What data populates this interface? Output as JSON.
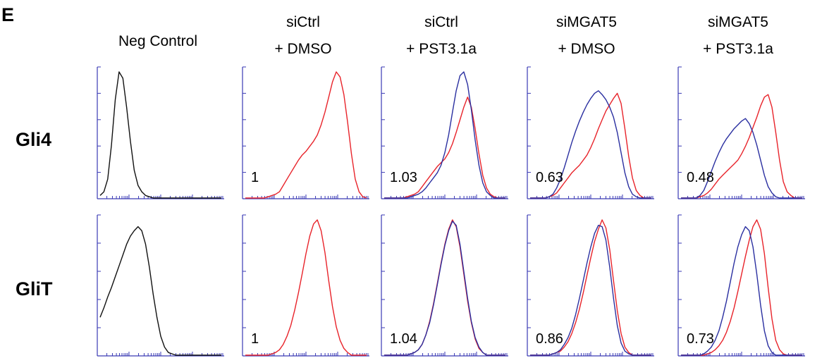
{
  "figure": {
    "panel_letter": "E",
    "columns": [
      {
        "line1": "Neg Control",
        "line2": ""
      },
      {
        "line1": "siCtrl",
        "line2": "+ DMSO"
      },
      {
        "line1": "siCtrl",
        "line2": "+ PST3.1a"
      },
      {
        "line1": "siMGAT5",
        "line2": "+ DMSO"
      },
      {
        "line1": "siMGAT5",
        "line2": "+ PST3.1a"
      }
    ],
    "rows": [
      "Gli4",
      "GliT"
    ]
  },
  "colors": {
    "neg": "#111111",
    "red": "#e8232a",
    "blue": "#2a2fa0",
    "axis": "#3a3ab4"
  },
  "chart_data": [
    {
      "type": "line",
      "row": "Gli4",
      "column": "Neg Control",
      "ratio_label": "",
      "series": [
        {
          "color": "black",
          "y": [
            0.02,
            0.05,
            0.15,
            0.42,
            0.78,
            1.0,
            0.95,
            0.72,
            0.45,
            0.22,
            0.1,
            0.05,
            0.02,
            0.01,
            0.0,
            0.0,
            0.0,
            0.0,
            0.0,
            0.0,
            0.0,
            0.0,
            0.0,
            0.0,
            0.0,
            0.0,
            0.0,
            0.0,
            0.0,
            0.0,
            0.0,
            0.0,
            0.0
          ]
        }
      ]
    },
    {
      "type": "line",
      "row": "Gli4",
      "column": "siCtrl + DMSO",
      "ratio_label": "1",
      "series": [
        {
          "color": "red",
          "y": [
            0.0,
            0.0,
            0.0,
            0.0,
            0.0,
            0.0,
            0.01,
            0.02,
            0.03,
            0.05,
            0.1,
            0.15,
            0.2,
            0.25,
            0.3,
            0.34,
            0.37,
            0.41,
            0.45,
            0.5,
            0.58,
            0.68,
            0.8,
            0.92,
            1.0,
            0.96,
            0.82,
            0.6,
            0.35,
            0.15,
            0.05,
            0.01,
            0.0
          ]
        }
      ]
    },
    {
      "type": "line",
      "row": "Gli4",
      "column": "siCtrl + PST3.1a",
      "ratio_label": "1.03",
      "series": [
        {
          "color": "red",
          "y": [
            0.0,
            0.0,
            0.0,
            0.0,
            0.0,
            0.0,
            0.01,
            0.02,
            0.03,
            0.05,
            0.09,
            0.13,
            0.17,
            0.21,
            0.25,
            0.28,
            0.31,
            0.36,
            0.43,
            0.52,
            0.62,
            0.72,
            0.8,
            0.72,
            0.55,
            0.35,
            0.18,
            0.08,
            0.03,
            0.01,
            0.0,
            0.0,
            0.0
          ]
        },
        {
          "color": "blue",
          "y": [
            0.0,
            0.0,
            0.0,
            0.0,
            0.0,
            0.0,
            0.0,
            0.01,
            0.02,
            0.03,
            0.05,
            0.08,
            0.12,
            0.16,
            0.2,
            0.26,
            0.36,
            0.5,
            0.68,
            0.85,
            0.97,
            1.0,
            0.9,
            0.7,
            0.46,
            0.26,
            0.12,
            0.05,
            0.02,
            0.0,
            0.0,
            0.0,
            0.0
          ]
        }
      ]
    },
    {
      "type": "line",
      "row": "Gli4",
      "column": "siMGAT5 + DMSO",
      "ratio_label": "0.63",
      "series": [
        {
          "color": "red",
          "y": [
            0.0,
            0.0,
            0.0,
            0.0,
            0.0,
            0.01,
            0.02,
            0.04,
            0.08,
            0.12,
            0.16,
            0.2,
            0.23,
            0.26,
            0.3,
            0.34,
            0.4,
            0.47,
            0.55,
            0.62,
            0.69,
            0.74,
            0.79,
            0.83,
            0.75,
            0.55,
            0.33,
            0.16,
            0.06,
            0.02,
            0.0,
            0.0,
            0.0
          ]
        },
        {
          "color": "blue",
          "y": [
            0.0,
            0.0,
            0.0,
            0.0,
            0.0,
            0.01,
            0.03,
            0.08,
            0.15,
            0.24,
            0.34,
            0.44,
            0.53,
            0.61,
            0.68,
            0.74,
            0.79,
            0.83,
            0.85,
            0.82,
            0.78,
            0.72,
            0.64,
            0.52,
            0.36,
            0.2,
            0.09,
            0.03,
            0.01,
            0.0,
            0.0,
            0.0,
            0.0
          ]
        }
      ]
    },
    {
      "type": "line",
      "row": "Gli4",
      "column": "siMGAT5 + PST3.1a",
      "ratio_label": "0.48",
      "series": [
        {
          "color": "red",
          "y": [
            0.0,
            0.0,
            0.0,
            0.0,
            0.0,
            0.01,
            0.02,
            0.04,
            0.07,
            0.11,
            0.15,
            0.18,
            0.21,
            0.24,
            0.27,
            0.3,
            0.35,
            0.41,
            0.48,
            0.56,
            0.64,
            0.73,
            0.8,
            0.82,
            0.72,
            0.52,
            0.3,
            0.13,
            0.05,
            0.02,
            0.0,
            0.0,
            0.0
          ]
        },
        {
          "color": "blue",
          "y": [
            0.0,
            0.0,
            0.0,
            0.0,
            0.0,
            0.02,
            0.06,
            0.13,
            0.21,
            0.29,
            0.36,
            0.42,
            0.47,
            0.51,
            0.55,
            0.58,
            0.61,
            0.63,
            0.59,
            0.52,
            0.42,
            0.3,
            0.18,
            0.09,
            0.04,
            0.01,
            0.0,
            0.0,
            0.0,
            0.0,
            0.0,
            0.0,
            0.0
          ]
        }
      ]
    },
    {
      "type": "line",
      "row": "GliT",
      "column": "Neg Control",
      "ratio_label": "",
      "series": [
        {
          "color": "black",
          "y": [
            0.28,
            0.35,
            0.43,
            0.5,
            0.58,
            0.66,
            0.74,
            0.82,
            0.88,
            0.92,
            0.95,
            0.92,
            0.82,
            0.65,
            0.45,
            0.28,
            0.14,
            0.06,
            0.02,
            0.01,
            0.0,
            0.0,
            0.0,
            0.0,
            0.0,
            0.0,
            0.0,
            0.0,
            0.0,
            0.0,
            0.0,
            0.0,
            0.0
          ]
        }
      ]
    },
    {
      "type": "line",
      "row": "GliT",
      "column": "siCtrl + DMSO",
      "ratio_label": "1",
      "series": [
        {
          "color": "red",
          "y": [
            0.0,
            0.0,
            0.0,
            0.0,
            0.0,
            0.0,
            0.0,
            0.01,
            0.02,
            0.04,
            0.08,
            0.14,
            0.22,
            0.33,
            0.46,
            0.6,
            0.75,
            0.88,
            0.97,
            1.0,
            0.92,
            0.76,
            0.55,
            0.36,
            0.21,
            0.11,
            0.05,
            0.02,
            0.0,
            0.0,
            0.0,
            0.0,
            0.0
          ]
        }
      ]
    },
    {
      "type": "line",
      "row": "GliT",
      "column": "siCtrl + PST3.1a",
      "ratio_label": "1.04",
      "series": [
        {
          "color": "red",
          "y": [
            0.0,
            0.0,
            0.0,
            0.0,
            0.0,
            0.0,
            0.0,
            0.01,
            0.02,
            0.04,
            0.08,
            0.15,
            0.25,
            0.38,
            0.53,
            0.68,
            0.82,
            0.93,
            1.0,
            0.95,
            0.8,
            0.6,
            0.4,
            0.24,
            0.12,
            0.05,
            0.02,
            0.0,
            0.0,
            0.0,
            0.0,
            0.0,
            0.0
          ]
        },
        {
          "color": "blue",
          "y": [
            0.0,
            0.0,
            0.0,
            0.0,
            0.0,
            0.0,
            0.0,
            0.01,
            0.02,
            0.04,
            0.08,
            0.15,
            0.24,
            0.37,
            0.52,
            0.67,
            0.81,
            0.92,
            0.99,
            0.96,
            0.82,
            0.62,
            0.42,
            0.25,
            0.13,
            0.06,
            0.02,
            0.0,
            0.0,
            0.0,
            0.0,
            0.0,
            0.0
          ]
        }
      ]
    },
    {
      "type": "line",
      "row": "GliT",
      "column": "siMGAT5 + DMSO",
      "ratio_label": "0.86",
      "series": [
        {
          "color": "red",
          "y": [
            0.0,
            0.0,
            0.0,
            0.0,
            0.0,
            0.0,
            0.01,
            0.02,
            0.03,
            0.06,
            0.1,
            0.16,
            0.24,
            0.34,
            0.46,
            0.59,
            0.72,
            0.84,
            0.93,
            1.0,
            0.94,
            0.78,
            0.55,
            0.33,
            0.16,
            0.06,
            0.02,
            0.0,
            0.0,
            0.0,
            0.0,
            0.0,
            0.0
          ]
        },
        {
          "color": "blue",
          "y": [
            0.0,
            0.0,
            0.0,
            0.0,
            0.0,
            0.0,
            0.01,
            0.02,
            0.04,
            0.08,
            0.13,
            0.2,
            0.3,
            0.42,
            0.55,
            0.68,
            0.8,
            0.9,
            0.96,
            0.95,
            0.85,
            0.65,
            0.42,
            0.22,
            0.09,
            0.03,
            0.01,
            0.0,
            0.0,
            0.0,
            0.0,
            0.0,
            0.0
          ]
        }
      ]
    },
    {
      "type": "line",
      "row": "GliT",
      "column": "siMGAT5 + PST3.1a",
      "ratio_label": "0.73",
      "series": [
        {
          "color": "red",
          "y": [
            0.0,
            0.0,
            0.0,
            0.0,
            0.0,
            0.0,
            0.0,
            0.01,
            0.02,
            0.04,
            0.07,
            0.11,
            0.17,
            0.25,
            0.35,
            0.47,
            0.6,
            0.73,
            0.85,
            0.95,
            1.0,
            0.93,
            0.75,
            0.5,
            0.27,
            0.11,
            0.04,
            0.01,
            0.0,
            0.0,
            0.0,
            0.0,
            0.0
          ]
        },
        {
          "color": "blue",
          "y": [
            0.0,
            0.0,
            0.0,
            0.0,
            0.0,
            0.0,
            0.01,
            0.03,
            0.06,
            0.11,
            0.18,
            0.28,
            0.4,
            0.54,
            0.68,
            0.8,
            0.89,
            0.95,
            0.92,
            0.8,
            0.6,
            0.37,
            0.18,
            0.07,
            0.02,
            0.0,
            0.0,
            0.0,
            0.0,
            0.0,
            0.0,
            0.0,
            0.0
          ]
        }
      ]
    }
  ]
}
